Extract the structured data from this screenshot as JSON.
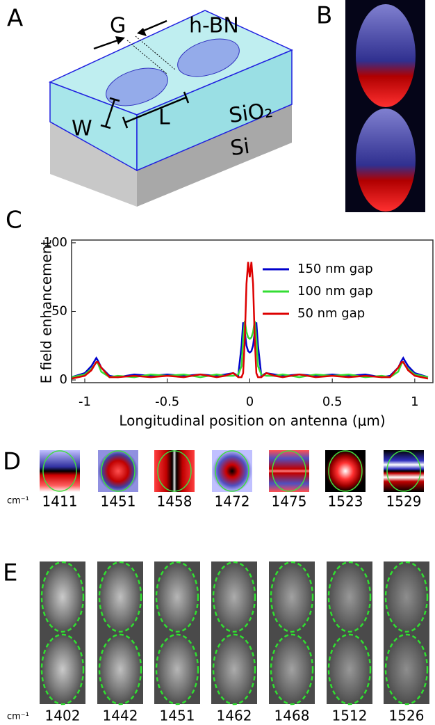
{
  "panel_a": {
    "label": "A",
    "gap": "G",
    "material": "h-BN",
    "width": "W",
    "length": "L",
    "oxide": "SiO₂",
    "substrate": "Si"
  },
  "panel_b": {
    "label": "B"
  },
  "panel_c": {
    "label": "C"
  },
  "chart_data": {
    "type": "line",
    "x_label": "Longitudinal position on antenna (μm)",
    "y_label": "E field enhancement",
    "x": [
      -1.08,
      -1.0,
      -0.96,
      -0.94,
      -0.93,
      -0.92,
      -0.9,
      -0.85,
      -0.8,
      -0.7,
      -0.6,
      -0.5,
      -0.4,
      -0.3,
      -0.2,
      -0.15,
      -0.1,
      -0.07,
      -0.05,
      -0.04,
      -0.03,
      -0.02,
      -0.01,
      0,
      0.01,
      0.02,
      0.03,
      0.04,
      0.05,
      0.07,
      0.1,
      0.15,
      0.2,
      0.3,
      0.4,
      0.5,
      0.6,
      0.7,
      0.8,
      0.85,
      0.9,
      0.92,
      0.93,
      0.94,
      0.96,
      1.0,
      1.08
    ],
    "series": [
      {
        "name": "150 nm gap",
        "color": "#0000cc",
        "values": [
          2,
          5,
          10,
          14,
          16,
          14,
          9,
          3,
          2,
          4,
          3,
          4,
          3,
          4,
          3,
          4,
          5,
          3,
          25,
          42,
          35,
          25,
          21,
          20,
          21,
          25,
          35,
          42,
          25,
          3,
          5,
          4,
          3,
          4,
          3,
          4,
          3,
          4,
          2,
          3,
          9,
          14,
          16,
          14,
          10,
          5,
          2
        ]
      },
      {
        "name": "100 nm gap",
        "color": "#33dd33",
        "values": [
          2,
          4,
          8,
          11,
          13,
          12,
          6,
          2,
          3,
          2,
          4,
          3,
          4,
          2,
          4,
          3,
          3,
          4,
          10,
          30,
          43,
          35,
          31,
          30,
          31,
          35,
          43,
          30,
          10,
          4,
          3,
          3,
          4,
          2,
          4,
          3,
          4,
          2,
          3,
          2,
          6,
          12,
          13,
          11,
          8,
          4,
          2
        ]
      },
      {
        "name": "50 nm gap",
        "color": "#dd0000",
        "values": [
          1,
          3,
          7,
          11,
          13,
          13,
          9,
          2,
          2,
          3,
          2,
          3,
          2,
          4,
          2,
          3,
          5,
          2,
          2,
          5,
          30,
          70,
          86,
          75,
          86,
          70,
          30,
          5,
          2,
          2,
          5,
          3,
          2,
          4,
          2,
          3,
          2,
          3,
          2,
          2,
          9,
          13,
          13,
          11,
          7,
          3,
          1
        ]
      }
    ],
    "xlim": [
      -1.08,
      1.11
    ],
    "xticks": [
      -1,
      -0.5,
      0,
      0.5,
      1
    ],
    "ylim": [
      -2,
      102
    ],
    "yticks": [
      0,
      50,
      100
    ],
    "legend": "upper right"
  },
  "panel_d": {
    "label": "D",
    "unit": "cm⁻¹",
    "wavenumbers": [
      1411,
      1451,
      1458,
      1472,
      1475,
      1523,
      1529
    ]
  },
  "panel_e": {
    "label": "E",
    "unit": "cm⁻¹",
    "wavenumbers": [
      1402,
      1442,
      1451,
      1462,
      1468,
      1512,
      1526
    ]
  }
}
